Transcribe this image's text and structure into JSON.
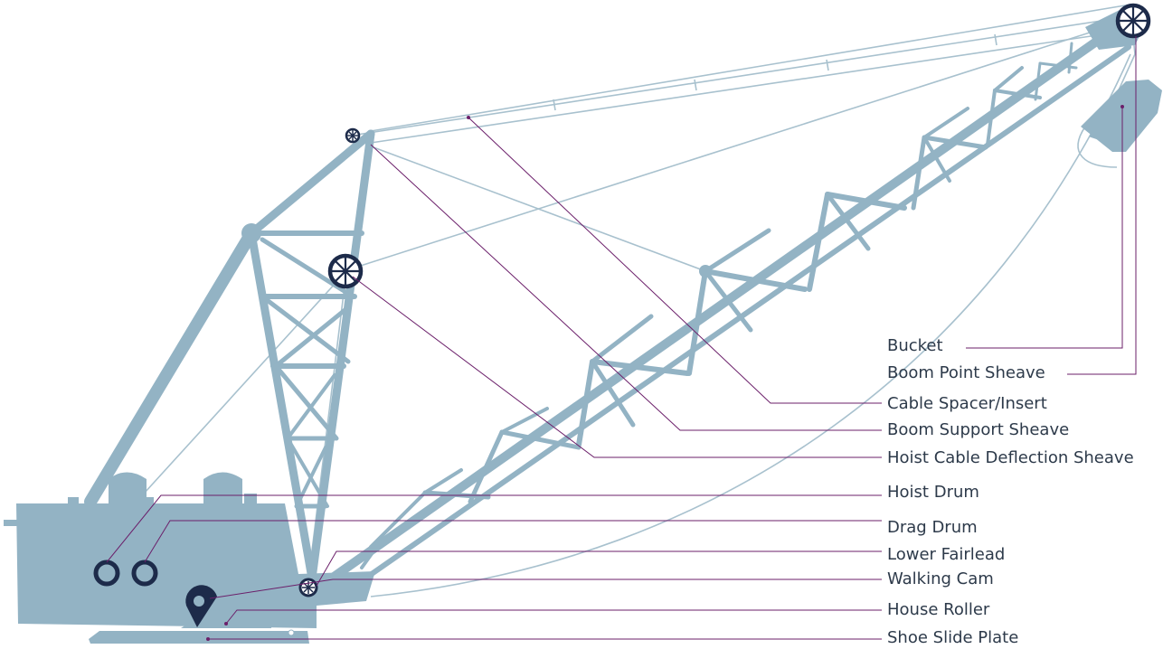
{
  "colors": {
    "machine": "#93b3c4",
    "cable": "#a8c1ce",
    "sheave": "#1d2b4a",
    "leader": "#6b1f6a",
    "text": "#2d3a4a"
  },
  "labels": {
    "bucket": "Bucket",
    "boom_point_sheave": "Boom Point Sheave",
    "cable_spacer_insert": "Cable Spacer/Insert",
    "boom_support_sheave": "Boom Support Sheave",
    "hoist_cable_deflection_sheave": "Hoist Cable Deflection Sheave",
    "hoist_drum": "Hoist Drum",
    "drag_drum": "Drag Drum",
    "lower_fairlead": "Lower Fairlead",
    "walking_cam": "Walking Cam",
    "house_roller": "House Roller",
    "shoe_slide_plate": "Shoe Slide Plate"
  }
}
